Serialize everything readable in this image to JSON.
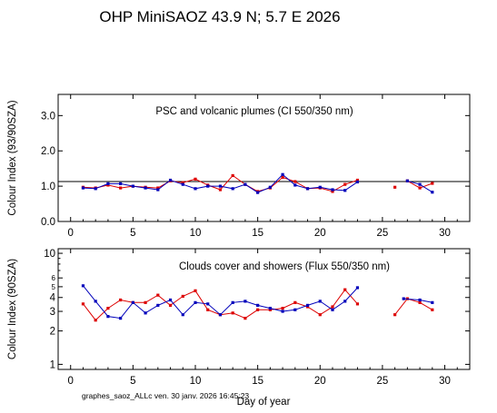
{
  "title": "OHP MiniSAOZ  43.9 N; 5.7 E   2026",
  "footer": "graphes_saoz_ALLc  ven. 30 janv. 2026 16:45:23",
  "xlabel": "Day of year",
  "colors": {
    "red": "#dd0000",
    "blue": "#0000bb",
    "axis": "#000000"
  },
  "chart_data": [
    {
      "type": "line",
      "annotation": "PSC and volcanic plumes (CI 550/350 nm)",
      "ylabel": "Colour Index (93/90SZA)",
      "xlim": [
        -1,
        32
      ],
      "ylim": [
        0,
        3.6
      ],
      "xticks": [
        "0",
        "5",
        "10",
        "15",
        "20",
        "25",
        "30"
      ],
      "xtick_values": [
        0,
        5,
        10,
        15,
        20,
        25,
        30
      ],
      "yticks": [
        "0.0",
        "1.0",
        "2.0",
        "3.0"
      ],
      "ytick_values": [
        0,
        1,
        2,
        3
      ],
      "reference_line": 1.13,
      "series": [
        {
          "color": "red",
          "segments": [
            [
              [
                1,
                0.97
              ],
              [
                2,
                0.95
              ],
              [
                3,
                1.03
              ],
              [
                4,
                0.95
              ],
              [
                5,
                1.0
              ],
              [
                6,
                0.97
              ],
              [
                7,
                0.95
              ],
              [
                8,
                1.15
              ],
              [
                9,
                1.1
              ],
              [
                10,
                1.2
              ],
              [
                11,
                1.03
              ],
              [
                12,
                0.9
              ],
              [
                13,
                1.3
              ],
              [
                14,
                1.05
              ],
              [
                15,
                0.85
              ],
              [
                16,
                0.95
              ],
              [
                17,
                1.25
              ],
              [
                18,
                1.13
              ],
              [
                19,
                0.93
              ],
              [
                20,
                0.95
              ],
              [
                21,
                0.85
              ],
              [
                22,
                1.05
              ],
              [
                23,
                1.17
              ]
            ],
            [
              [
                26,
                0.97
              ]
            ],
            [
              [
                27,
                1.15
              ],
              [
                28,
                0.95
              ],
              [
                29,
                1.08
              ]
            ]
          ]
        },
        {
          "color": "blue",
          "segments": [
            [
              [
                1,
                0.95
              ],
              [
                2,
                0.93
              ],
              [
                3,
                1.07
              ],
              [
                4,
                1.07
              ],
              [
                5,
                1.0
              ],
              [
                6,
                0.95
              ],
              [
                7,
                0.9
              ],
              [
                8,
                1.17
              ],
              [
                9,
                1.05
              ],
              [
                10,
                0.93
              ],
              [
                11,
                1.0
              ],
              [
                12,
                1.0
              ],
              [
                13,
                0.93
              ],
              [
                14,
                1.05
              ],
              [
                15,
                0.82
              ],
              [
                16,
                0.97
              ],
              [
                17,
                1.33
              ],
              [
                18,
                1.03
              ],
              [
                19,
                0.93
              ],
              [
                20,
                0.97
              ],
              [
                21,
                0.9
              ],
              [
                22,
                0.88
              ],
              [
                23,
                1.12
              ]
            ],
            [
              [
                27,
                1.15
              ],
              [
                28,
                1.05
              ],
              [
                29,
                0.83
              ]
            ]
          ]
        }
      ]
    },
    {
      "type": "line",
      "annotation": "Clouds cover and showers (Flux 550/350 nm)",
      "ylabel": "Colour Index (90SZA)",
      "xlim": [
        -1,
        32
      ],
      "ylim": [
        0.9,
        11
      ],
      "yscale": "log",
      "xticks": [
        "0",
        "5",
        "10",
        "15",
        "20",
        "25",
        "30"
      ],
      "xtick_values": [
        0,
        5,
        10,
        15,
        20,
        25,
        30
      ],
      "yticks": [
        "1",
        "2",
        "3",
        "4",
        "5",
        "6",
        "10"
      ],
      "ytick_values": [
        1,
        2,
        3,
        4,
        5,
        6,
        10
      ],
      "series": [
        {
          "color": "red",
          "segments": [
            [
              [
                1,
                3.5
              ],
              [
                2,
                2.5
              ],
              [
                3,
                3.2
              ],
              [
                4,
                3.8
              ],
              [
                5,
                3.6
              ],
              [
                6,
                3.6
              ],
              [
                7,
                4.2
              ],
              [
                8,
                3.4
              ],
              [
                9,
                4.1
              ],
              [
                10,
                4.6
              ],
              [
                11,
                3.1
              ],
              [
                12,
                2.8
              ],
              [
                13,
                2.9
              ],
              [
                14,
                2.6
              ],
              [
                15,
                3.1
              ],
              [
                16,
                3.1
              ],
              [
                17,
                3.2
              ],
              [
                18,
                3.6
              ],
              [
                19,
                3.3
              ],
              [
                20,
                2.8
              ],
              [
                21,
                3.3
              ],
              [
                22,
                4.7
              ],
              [
                23,
                3.5
              ]
            ],
            [
              [
                26,
                2.8
              ],
              [
                27,
                3.9
              ],
              [
                28,
                3.6
              ],
              [
                29,
                3.1
              ]
            ]
          ]
        },
        {
          "color": "blue",
          "segments": [
            [
              [
                1,
                5.1
              ],
              [
                2,
                3.7
              ],
              [
                3,
                2.7
              ],
              [
                4,
                2.6
              ],
              [
                5,
                3.6
              ],
              [
                6,
                2.9
              ],
              [
                7,
                3.4
              ],
              [
                8,
                3.8
              ],
              [
                9,
                2.8
              ],
              [
                10,
                3.6
              ],
              [
                11,
                3.5
              ],
              [
                12,
                2.8
              ],
              [
                13,
                3.6
              ],
              [
                14,
                3.7
              ],
              [
                15,
                3.4
              ],
              [
                16,
                3.2
              ],
              [
                17,
                3.0
              ],
              [
                18,
                3.1
              ],
              [
                19,
                3.4
              ],
              [
                20,
                3.7
              ],
              [
                21,
                3.1
              ],
              [
                22,
                3.7
              ],
              [
                23,
                4.9
              ]
            ],
            [
              [
                26.7,
                3.9
              ],
              [
                28,
                3.8
              ],
              [
                29,
                3.6
              ]
            ]
          ]
        }
      ]
    }
  ]
}
